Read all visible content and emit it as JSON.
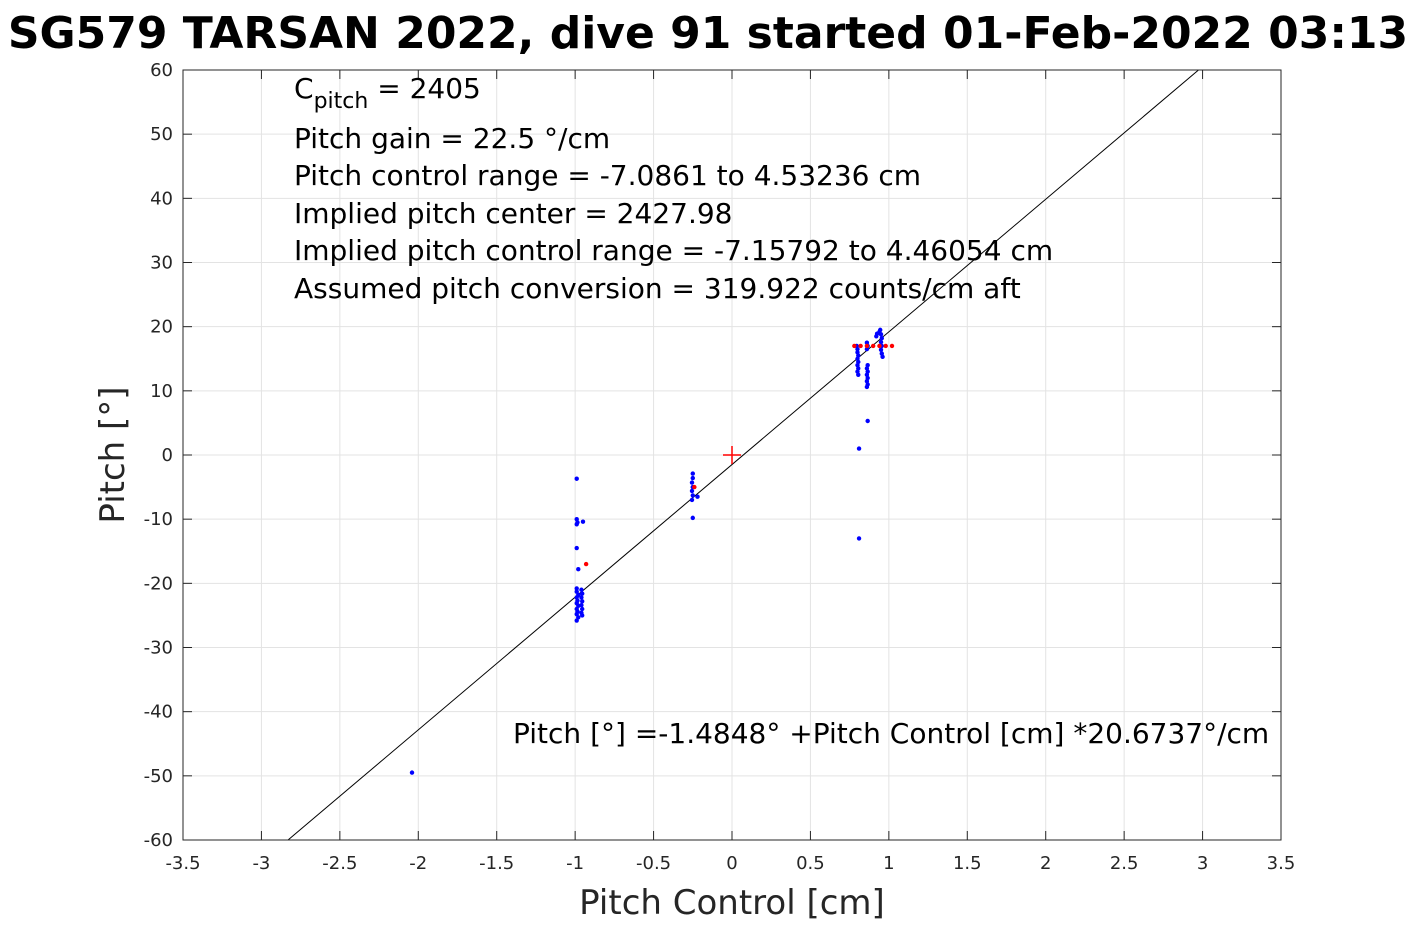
{
  "chart_data": {
    "type": "scatter",
    "title": "SG579 TARSAN 2022, dive 91 started 01-Feb-2022 03:13",
    "xlabel": "Pitch Control [cm]",
    "ylabel": "Pitch [°]",
    "xlim": [
      -3.5,
      3.5
    ],
    "ylim": [
      -60,
      60
    ],
    "x_ticks": [
      -3.5,
      -3,
      -2.5,
      -2,
      -1.5,
      -1,
      -0.5,
      0,
      0.5,
      1,
      1.5,
      2,
      2.5,
      3,
      3.5
    ],
    "y_ticks": [
      -60,
      -50,
      -40,
      -30,
      -20,
      -10,
      0,
      10,
      20,
      30,
      40,
      50,
      60
    ],
    "x_tick_labels": [
      "-3.5",
      "-3",
      "-2.5",
      "-2",
      "-1.5",
      "-1",
      "-0.5",
      "0",
      "0.5",
      "1",
      "1.5",
      "2",
      "2.5",
      "3",
      "3.5"
    ],
    "y_tick_labels": [
      "-60",
      "-50",
      "-40",
      "-30",
      "-20",
      "-10",
      "0",
      "10",
      "20",
      "30",
      "40",
      "50",
      "60"
    ],
    "grid": true,
    "annotations": {
      "c_pitch_main": "C",
      "c_pitch_sub": "pitch",
      "c_pitch_value": " = 2405",
      "lines": [
        "Pitch gain = 22.5 °/cm",
        "Pitch control range = -7.0861 to 4.53236 cm",
        "Implied pitch center = 2427.98",
        "Implied pitch control range = -7.15792 to 4.46054 cm",
        "Assumed pitch conversion = 319.922 counts/cm aft"
      ],
      "fit_equation": "Pitch [°] =-1.4848° +Pitch Control [cm] *20.6737°/cm"
    },
    "fit_line": {
      "intercept": -1.4848,
      "slope": 20.6737,
      "color": "#000000"
    },
    "center_marker": {
      "x": 0,
      "y": 0,
      "color": "#ff0000"
    },
    "series": [
      {
        "color": "#0000ff",
        "points": [
          [
            -2.04,
            -49.5
          ],
          [
            -0.99,
            -3.7
          ],
          [
            -0.99,
            -10.0
          ],
          [
            -0.985,
            -10.5
          ],
          [
            -0.99,
            -10.8
          ],
          [
            -0.95,
            -10.4
          ],
          [
            -0.99,
            -14.5
          ],
          [
            -0.98,
            -17.8
          ],
          [
            -0.99,
            -20.8
          ],
          [
            -0.99,
            -21.3
          ],
          [
            -0.98,
            -21.8
          ],
          [
            -0.99,
            -22.2
          ],
          [
            -0.985,
            -22.7
          ],
          [
            -0.99,
            -23.1
          ],
          [
            -0.98,
            -23.5
          ],
          [
            -0.99,
            -24.0
          ],
          [
            -0.985,
            -24.4
          ],
          [
            -0.99,
            -24.8
          ],
          [
            -0.98,
            -25.3
          ],
          [
            -0.99,
            -25.8
          ],
          [
            -0.96,
            -21.0
          ],
          [
            -0.955,
            -21.6
          ],
          [
            -0.96,
            -22.2
          ],
          [
            -0.955,
            -22.8
          ],
          [
            -0.96,
            -23.4
          ],
          [
            -0.955,
            -24.0
          ],
          [
            -0.96,
            -24.6
          ],
          [
            -0.955,
            -25.0
          ],
          [
            -0.25,
            -2.9
          ],
          [
            -0.25,
            -3.6
          ],
          [
            -0.255,
            -4.3
          ],
          [
            -0.25,
            -5.0
          ],
          [
            -0.255,
            -5.6
          ],
          [
            -0.25,
            -6.3
          ],
          [
            -0.255,
            -7.0
          ],
          [
            -0.25,
            -9.8
          ],
          [
            -0.22,
            -6.5
          ],
          [
            0.795,
            17.0
          ],
          [
            0.8,
            16.5
          ],
          [
            0.8,
            16.0
          ],
          [
            0.805,
            15.5
          ],
          [
            0.8,
            15.0
          ],
          [
            0.805,
            14.5
          ],
          [
            0.8,
            14.0
          ],
          [
            0.805,
            13.5
          ],
          [
            0.8,
            13.0
          ],
          [
            0.805,
            12.5
          ],
          [
            0.81,
            1.0
          ],
          [
            0.81,
            -13.0
          ],
          [
            0.86,
            17.5
          ],
          [
            0.865,
            17.0
          ],
          [
            0.86,
            16.5
          ],
          [
            0.865,
            14.0
          ],
          [
            0.86,
            13.5
          ],
          [
            0.865,
            13.0
          ],
          [
            0.86,
            12.5
          ],
          [
            0.865,
            12.0
          ],
          [
            0.86,
            11.5
          ],
          [
            0.865,
            11.0
          ],
          [
            0.86,
            10.6
          ],
          [
            0.865,
            5.3
          ],
          [
            0.92,
            18.5
          ],
          [
            0.925,
            18.9
          ],
          [
            0.94,
            19.2
          ],
          [
            0.945,
            19.5
          ],
          [
            0.95,
            18.8
          ],
          [
            0.955,
            18.2
          ],
          [
            0.95,
            17.6
          ],
          [
            0.955,
            17.0
          ],
          [
            0.95,
            16.4
          ],
          [
            0.955,
            15.8
          ],
          [
            0.96,
            15.3
          ]
        ]
      },
      {
        "color": "#ff0000",
        "points": [
          [
            -0.93,
            -17.0
          ],
          [
            -0.24,
            -5.0
          ],
          [
            0.78,
            17.0
          ],
          [
            0.82,
            17.0
          ],
          [
            0.86,
            17.0
          ],
          [
            0.9,
            17.0
          ],
          [
            0.94,
            17.0
          ],
          [
            0.98,
            17.0
          ],
          [
            1.02,
            17.0
          ]
        ]
      }
    ]
  }
}
